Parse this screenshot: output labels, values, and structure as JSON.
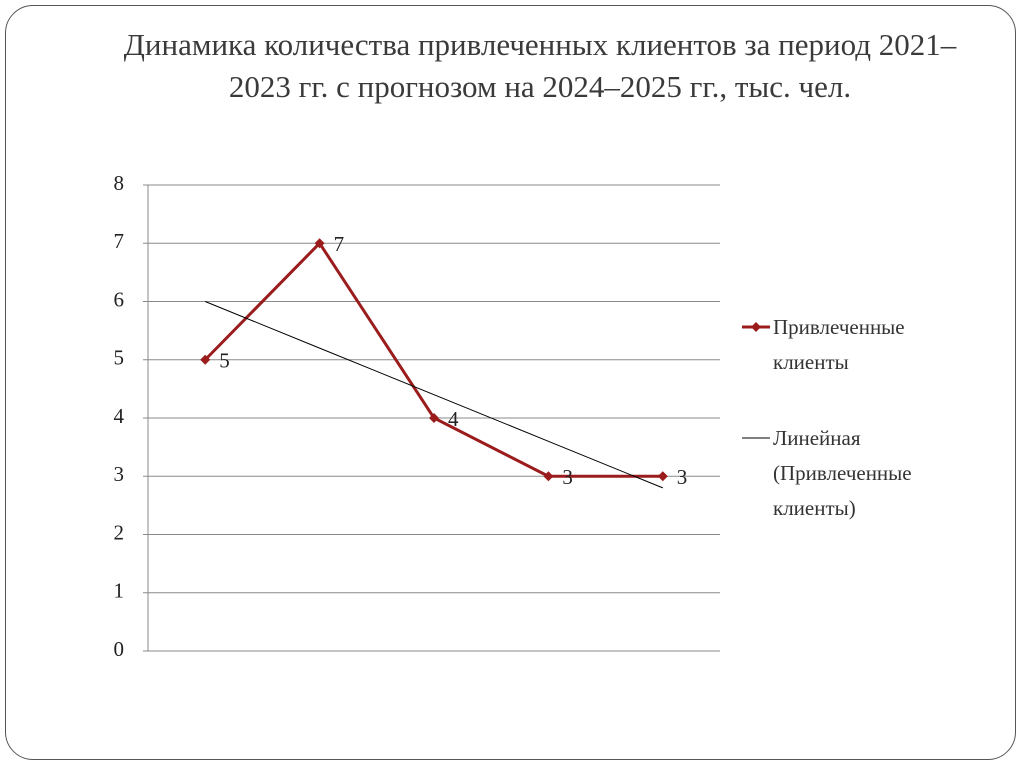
{
  "chart_data": {
    "type": "line",
    "title": "Динамика количества привлеченных клиентов за период 2021–2023 гг. с прогнозом на 2024–2025 гг., тыс. чел.",
    "categories": [
      null,
      null,
      null,
      null,
      null
    ],
    "series": [
      {
        "name": "Привлеченные клиенты",
        "color": "#9b1c1c",
        "values": [
          5,
          7,
          4,
          3,
          3
        ],
        "data_labels": true,
        "markers": true
      },
      {
        "name": "Линейная (Привлеченные клиенты)",
        "color": "#000000",
        "values": [
          6,
          5.2,
          4.4,
          3.6,
          2.8
        ]
      }
    ],
    "ylim": [
      0,
      8
    ],
    "yticks": [
      0,
      1,
      2,
      3,
      4,
      5,
      6,
      7,
      8
    ],
    "grid": true,
    "legend": "right"
  }
}
